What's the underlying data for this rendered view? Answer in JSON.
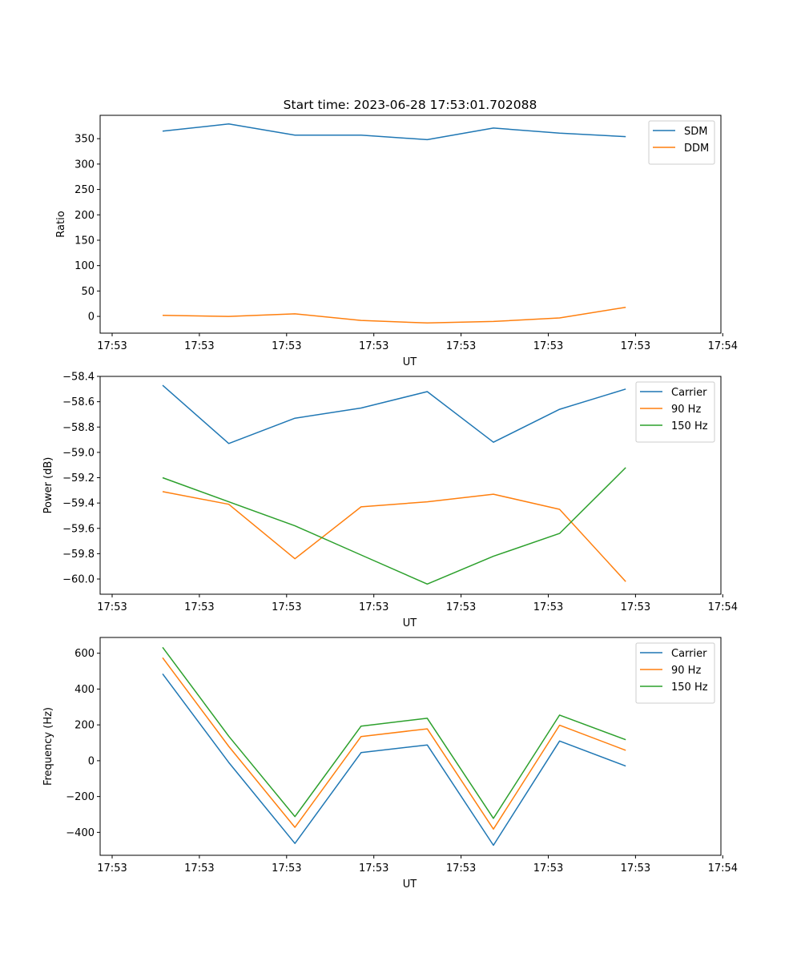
{
  "figure": {
    "title": "Start time: 2023-06-28 17:53:01.702088"
  },
  "chart_data": [
    {
      "type": "line",
      "xlabel": "UT",
      "ylabel": "Ratio",
      "x_tick_labels": [
        "17:53",
        "17:53",
        "17:53",
        "17:53",
        "17:53",
        "17:53",
        "17:53",
        "17:54"
      ],
      "y_ticks": [
        0,
        50,
        100,
        150,
        200,
        250,
        300,
        350
      ],
      "ylim": [
        -33,
        396
      ],
      "legend_position": "top-right",
      "series": [
        {
          "name": "SDM",
          "color": "#1f77b4",
          "values": [
            365,
            379,
            357,
            357,
            348,
            371,
            361,
            354
          ]
        },
        {
          "name": "DDM",
          "color": "#ff7f0e",
          "values": [
            2,
            0,
            5,
            -8,
            -13,
            -10,
            -3,
            18
          ]
        }
      ]
    },
    {
      "type": "line",
      "xlabel": "UT",
      "ylabel": "Power (dB)",
      "x_tick_labels": [
        "17:53",
        "17:53",
        "17:53",
        "17:53",
        "17:53",
        "17:53",
        "17:53",
        "17:54"
      ],
      "y_ticks": [
        -60.0,
        -59.8,
        -59.6,
        -59.4,
        -59.2,
        -59.0,
        -58.8,
        -58.6,
        -58.4
      ],
      "y_tick_labels": [
        "−60.0",
        "−59.8",
        "−59.6",
        "−59.4",
        "−59.2",
        "−59.0",
        "−58.8",
        "−58.6",
        "−58.4"
      ],
      "ylim": [
        -60.12,
        -58.4
      ],
      "legend_position": "top-right",
      "series": [
        {
          "name": "Carrier",
          "color": "#1f77b4",
          "values": [
            -58.47,
            -58.93,
            -58.73,
            -58.65,
            -58.52,
            -58.92,
            -58.66,
            -58.5
          ]
        },
        {
          "name": "90 Hz",
          "color": "#ff7f0e",
          "values": [
            -59.31,
            -59.41,
            -59.84,
            -59.43,
            -59.39,
            -59.33,
            -59.45,
            -60.02
          ]
        },
        {
          "name": "150 Hz",
          "color": "#2ca02c",
          "values": [
            -59.2,
            -59.39,
            -59.58,
            -59.81,
            -60.04,
            -59.82,
            -59.64,
            -59.12
          ]
        }
      ]
    },
    {
      "type": "line",
      "xlabel": "UT",
      "ylabel": "Frequency (Hz)",
      "x_tick_labels": [
        "17:53",
        "17:53",
        "17:53",
        "17:53",
        "17:53",
        "17:53",
        "17:53",
        "17:54"
      ],
      "y_ticks": [
        -400,
        -200,
        0,
        200,
        400,
        600
      ],
      "y_tick_labels": [
        "−400",
        "−200",
        "0",
        "200",
        "400",
        "600"
      ],
      "ylim": [
        -528,
        688
      ],
      "legend_position": "top-right",
      "series": [
        {
          "name": "Carrier",
          "color": "#1f77b4",
          "values": [
            485,
            -10,
            -462,
            45,
            88,
            -472,
            110,
            -30
          ]
        },
        {
          "name": "90 Hz",
          "color": "#ff7f0e",
          "values": [
            575,
            80,
            -372,
            135,
            178,
            -382,
            198,
            58
          ]
        },
        {
          "name": "150 Hz",
          "color": "#2ca02c",
          "values": [
            633,
            137,
            -312,
            193,
            237,
            -322,
            255,
            117
          ]
        }
      ]
    }
  ]
}
